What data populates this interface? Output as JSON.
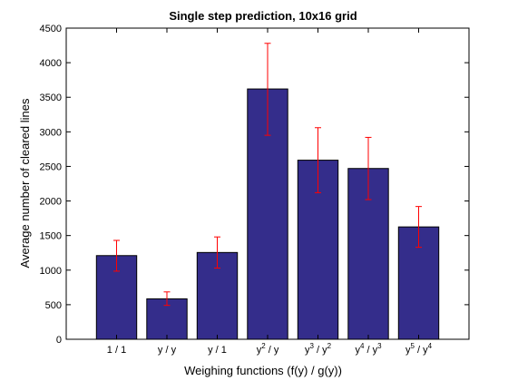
{
  "chart_data": {
    "type": "bar",
    "title": "Single step prediction, 10x16 grid",
    "xlabel": "Weighing functions (f(y) / g(y))",
    "ylabel": "Average number of cleared lines",
    "ylim": [
      0,
      4500
    ],
    "yticks": [
      0,
      500,
      1000,
      1500,
      2000,
      2500,
      3000,
      3500,
      4000,
      4500
    ],
    "categories": [
      {
        "base": "1",
        "base_exp": "",
        "sep": " / ",
        "den": "1",
        "den_exp": ""
      },
      {
        "base": "y",
        "base_exp": "",
        "sep": " / ",
        "den": "y",
        "den_exp": ""
      },
      {
        "base": "y",
        "base_exp": "",
        "sep": " / ",
        "den": "1",
        "den_exp": ""
      },
      {
        "base": "y",
        "base_exp": "2",
        "sep": " / ",
        "den": "y",
        "den_exp": ""
      },
      {
        "base": "y",
        "base_exp": "3",
        "sep": " / ",
        "den": "y",
        "den_exp": "2"
      },
      {
        "base": "y",
        "base_exp": "4",
        "sep": " / ",
        "den": "y",
        "den_exp": "3"
      },
      {
        "base": "y",
        "base_exp": "5",
        "sep": " / ",
        "den": "y",
        "den_exp": "4"
      }
    ],
    "values": [
      1210,
      585,
      1255,
      3620,
      2590,
      2470,
      1625
    ],
    "error_low": [
      985,
      490,
      1030,
      2950,
      2120,
      2020,
      1330
    ],
    "error_high": [
      1430,
      685,
      1480,
      4280,
      3060,
      2920,
      1920
    ],
    "grid": false,
    "colors": {
      "bar_fill": "#342d8b",
      "bar_stroke": "#000000",
      "error_bar": "#ff0000"
    }
  }
}
